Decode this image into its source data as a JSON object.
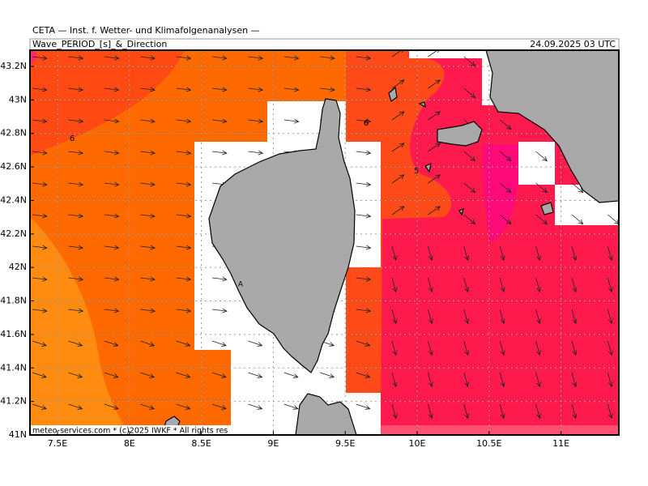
{
  "header": {
    "source": "CETA — Inst. f. Wetter- und Klimafolgenanalysen —",
    "title": "Wave_PERIOD_[s]_&_Direction",
    "date": "24.09.2025 03 UTC"
  },
  "map": {
    "lat_labels": [
      "43.2N",
      "43N",
      "42.8N",
      "42.6N",
      "42.4N",
      "42.2N",
      "42N",
      "41.8N",
      "41.6N",
      "41.4N",
      "41.2N",
      "41N"
    ],
    "lon_labels": [
      "7.5E",
      "8E",
      "8.5E",
      "9E",
      "9.5E",
      "10E",
      "10.5E",
      "11E"
    ],
    "contour_labels": [
      "6",
      "6",
      "5"
    ],
    "place_label": "A",
    "footer": "meteo-services.com * (c)2025 IWKF * All rights res"
  }
}
